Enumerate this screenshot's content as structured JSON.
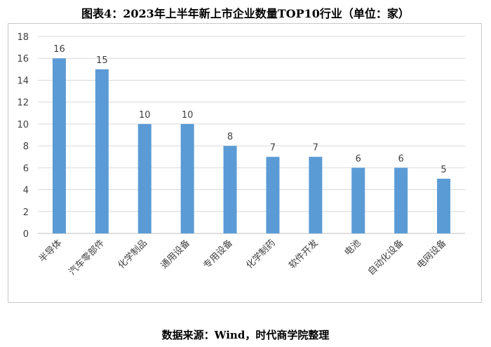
{
  "title": "图表4：2023年上半年新上市企业数量TOP10行业（单位：家）",
  "source": "数据来源：Wind，时代商学院整理",
  "colors": {
    "bar": "#5b9bd5",
    "grid": "#d9d9d9",
    "axis": "#bfbfbf",
    "text": "#404040"
  },
  "chart_data": {
    "type": "bar",
    "title": "图表4：2023年上半年新上市企业数量TOP10行业（单位：家）",
    "categories": [
      "半导体",
      "汽车零部件",
      "化学制品",
      "通用设备",
      "专用设备",
      "化学制药",
      "软件开发",
      "电池",
      "自动化设备",
      "电网设备"
    ],
    "values": [
      16,
      15,
      10,
      10,
      8,
      7,
      7,
      6,
      6,
      5
    ],
    "ylim": [
      0,
      18
    ],
    "yticks": [
      0,
      2,
      4,
      6,
      8,
      10,
      12,
      14,
      16,
      18
    ],
    "grid": true,
    "legend": "none",
    "xlabel": "",
    "ylabel": ""
  }
}
